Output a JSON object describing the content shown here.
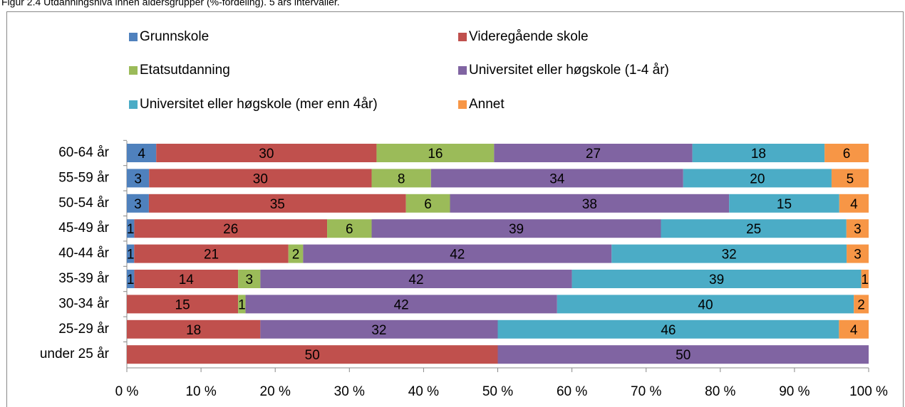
{
  "chart_data": {
    "type": "stacked_bar_100_horizontal",
    "title": "Figur 2.4 Utdanningsnivå innen aldersgrupper (%-fordeling). 5 års intervaller.",
    "categories": [
      "60-64 år",
      "55-59 år",
      "50-54 år",
      "45-49 år",
      "40-44 år",
      "35-39 år",
      "30-34 år",
      "25-29 år",
      "under 25 år"
    ],
    "series": [
      {
        "name": "Grunnskole",
        "color": "#4f81bd",
        "values": [
          4,
          3,
          3,
          1,
          1,
          1,
          null,
          null,
          null
        ]
      },
      {
        "name": "Videregående skole",
        "color": "#c0504d",
        "values": [
          30,
          30,
          35,
          26,
          21,
          14,
          15,
          18,
          50
        ]
      },
      {
        "name": "Etatsutdanning",
        "color": "#9bbb59",
        "values": [
          16,
          8,
          6,
          6,
          2,
          3,
          1,
          null,
          null
        ]
      },
      {
        "name": "Universitet eller høgskole (1-4 år)",
        "color": "#8064a2",
        "values": [
          27,
          34,
          38,
          39,
          42,
          42,
          42,
          32,
          50
        ]
      },
      {
        "name": "Universitet eller høgskole (mer enn 4år)",
        "color": "#4bacc6",
        "values": [
          18,
          20,
          15,
          25,
          32,
          39,
          40,
          46,
          null
        ]
      },
      {
        "name": "Annet",
        "color": "#f79646",
        "values": [
          6,
          5,
          4,
          3,
          3,
          1,
          2,
          4,
          null
        ]
      }
    ],
    "xlim": [
      0,
      100
    ],
    "xticks": [
      {
        "value": 0,
        "label": "0 %"
      },
      {
        "value": 10,
        "label": "10 %"
      },
      {
        "value": 20,
        "label": "20 %"
      },
      {
        "value": 30,
        "label": "30 %"
      },
      {
        "value": 40,
        "label": "40 %"
      },
      {
        "value": 50,
        "label": "50 %"
      },
      {
        "value": 60,
        "label": "60 %"
      },
      {
        "value": 70,
        "label": "70 %"
      },
      {
        "value": 80,
        "label": "80 %"
      },
      {
        "value": 90,
        "label": "90 %"
      },
      {
        "value": 100,
        "label": "100 %"
      }
    ],
    "legend": "top"
  }
}
